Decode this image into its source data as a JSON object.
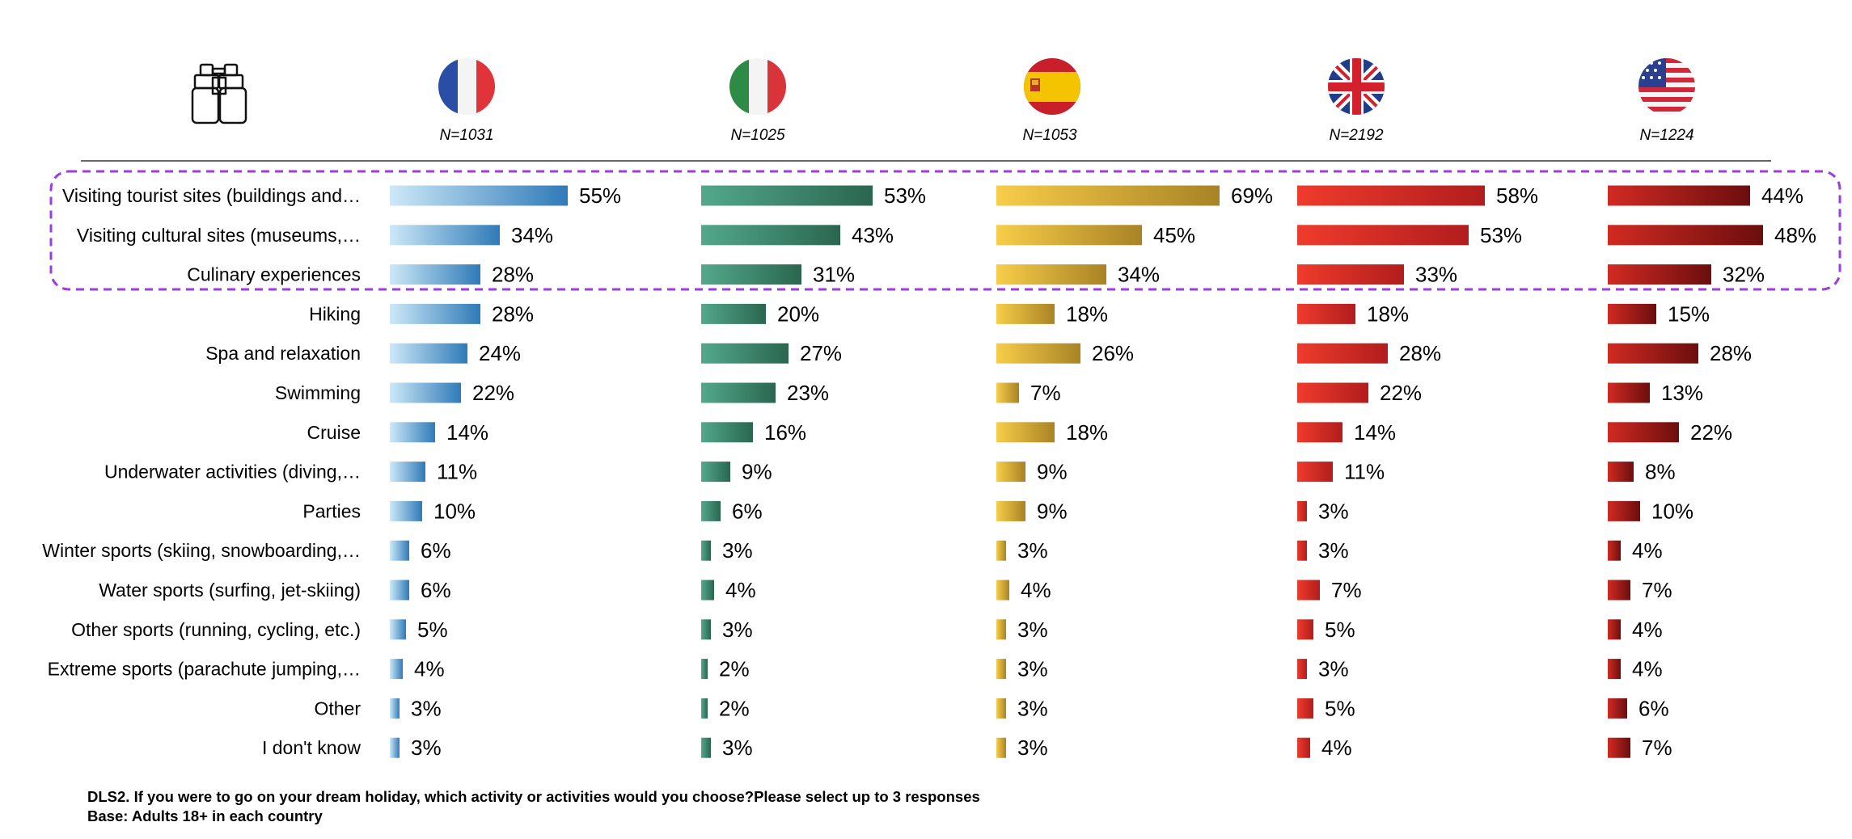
{
  "chart_data": {
    "type": "bar",
    "orientation": "horizontal",
    "panels": "small-multiples by country",
    "categories": [
      "Visiting tourist sites (buildings and…",
      "Visiting cultural sites (museums,…",
      "Culinary experiences",
      "Hiking",
      "Spa and relaxation",
      "Swimming",
      "Cruise",
      "Underwater activities (diving,…",
      "Parties",
      "Winter sports (skiing, snowboarding,…",
      "Water sports (surfing, jet-skiing)",
      "Other sports (running, cycling, etc.)",
      "Extreme sports (parachute jumping,…",
      "Other",
      "I don't know"
    ],
    "highlighted_categories": 3,
    "series": [
      {
        "flag": "france-flag-icon",
        "n_label": "N=1031",
        "color_start": "#cde9f8",
        "color_end": "#2f7ab8",
        "values": [
          55,
          34,
          28,
          28,
          24,
          22,
          14,
          11,
          10,
          6,
          6,
          5,
          4,
          3,
          3
        ]
      },
      {
        "flag": "italy-flag-icon",
        "n_label": "N=1025",
        "color_start": "#53a88c",
        "color_end": "#2a6650",
        "values": [
          53,
          43,
          31,
          20,
          27,
          23,
          16,
          9,
          6,
          3,
          4,
          3,
          2,
          2,
          3
        ]
      },
      {
        "flag": "spain-flag-icon",
        "n_label": "N=1053",
        "color_start": "#f7cd49",
        "color_end": "#a88325",
        "values": [
          69,
          45,
          34,
          18,
          26,
          7,
          18,
          9,
          9,
          3,
          4,
          3,
          3,
          3,
          3
        ]
      },
      {
        "flag": "uk-flag-icon",
        "n_label": "N=2192",
        "color_start": "#ef3b2c",
        "color_end": "#b11d1d",
        "values": [
          58,
          53,
          33,
          18,
          28,
          22,
          14,
          11,
          3,
          3,
          7,
          5,
          3,
          5,
          4
        ]
      },
      {
        "flag": "usa-flag-icon",
        "n_label": "N=1224",
        "color_start": "#d12a22",
        "color_end": "#6b0e0e",
        "values": [
          44,
          48,
          32,
          15,
          28,
          13,
          22,
          8,
          10,
          4,
          7,
          4,
          4,
          6,
          7
        ]
      }
    ],
    "value_suffix": "%",
    "header_icon": "binoculars-icon",
    "highlight_color": "#9b3ee0"
  },
  "footnote": {
    "question": "DLS2. If you were to go on your dream holiday, which activity or activities would you choose?Please select up to 3 responses",
    "base": "Base: Adults 18+ in each country"
  }
}
